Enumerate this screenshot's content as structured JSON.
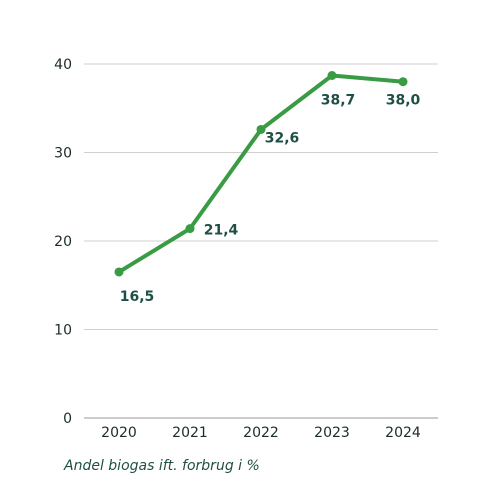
{
  "chart_data": {
    "type": "line",
    "categories": [
      "2020",
      "2021",
      "2022",
      "2023",
      "2024"
    ],
    "series": [
      {
        "values": [
          16.5,
          21.4,
          32.6,
          38.7,
          38.0
        ]
      }
    ],
    "data_labels": [
      "16,5",
      "21,4",
      "32,6",
      "38,7",
      "38,0"
    ],
    "yticks": [
      0,
      10,
      20,
      30,
      40
    ],
    "ylim": [
      0,
      40
    ],
    "grid": true,
    "line_color": "#3a9b45",
    "caption": "Andel biogas ift. forbrug i %"
  }
}
